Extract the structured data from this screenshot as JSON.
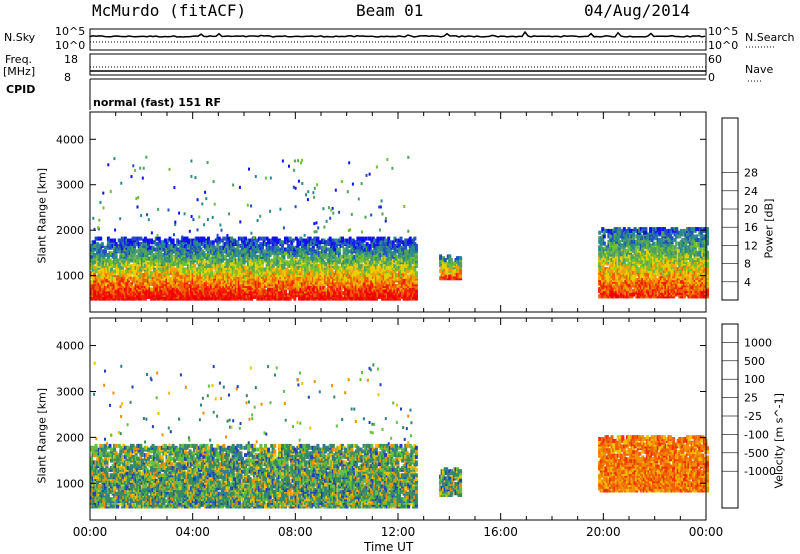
{
  "header": {
    "title": "McMurdo (fitACF)",
    "beam": "Beam 01",
    "date": "04/Aug/2014"
  },
  "strips": {
    "nsky_label": "N.Sky",
    "noise_ticks_left": [
      "10^5",
      "10^0"
    ],
    "noise_ticks_right": [
      "10^5",
      "10^0"
    ],
    "nsearch_label": "N.Search",
    "freq_label": "Freq.",
    "freq_unit": "[MHz]",
    "freq_ticks": [
      "18",
      "8"
    ],
    "nave_ticks": [
      "60",
      "0"
    ],
    "nave_label": "Nave",
    "cpid_label": "CPID",
    "cpid_value": "normal (fast) 151 RF"
  },
  "x_axis": {
    "label": "Time UT",
    "ticks": [
      "00:00",
      "04:00",
      "08:00",
      "12:00",
      "16:00",
      "20:00",
      "00:00"
    ]
  },
  "chart_data": [
    {
      "type": "heatmap",
      "panel": "power",
      "ylabel": "Slant Range [km]",
      "y_ticks": [
        "1000",
        "2000",
        "3000",
        "4000"
      ],
      "ylim": [
        200,
        4600
      ],
      "xlim_hours": [
        0,
        24
      ],
      "colorbar": {
        "label": "Power [dB]",
        "ticks": [
          "4",
          "8",
          "12",
          "16",
          "20",
          "24",
          "28"
        ],
        "colors": [
          "#1010f0",
          "#2050c0",
          "#2a8a8a",
          "#50a060",
          "#70c030",
          "#e8d000",
          "#f0a000",
          "#f06000",
          "#f02000",
          "#f00000"
        ]
      },
      "echo_regions": [
        {
          "t0": 0.0,
          "t1": 12.7,
          "r0": 450,
          "r1": 1800,
          "level": "strong"
        },
        {
          "t0": 13.6,
          "t1": 14.4,
          "r0": 900,
          "r1": 1400,
          "level": "medium"
        },
        {
          "t0": 19.8,
          "t1": 24.0,
          "r0": 500,
          "r1": 2000,
          "level": "medium"
        }
      ]
    },
    {
      "type": "heatmap",
      "panel": "velocity",
      "ylabel": "Slant Range [km]",
      "y_ticks": [
        "1000",
        "2000",
        "3000",
        "4000"
      ],
      "ylim": [
        200,
        4600
      ],
      "xlim_hours": [
        0,
        24
      ],
      "colorbar": {
        "label": "Velocity [m s^-1]",
        "ticks": [
          "1000",
          "500",
          "100",
          "25",
          "-25",
          "-100",
          "-500",
          "-1000"
        ],
        "colors": [
          "#2040c0",
          "#2a7a9a",
          "#3a8a60",
          "#60c040",
          "#c0c0c0",
          "#f0c000",
          "#f09000",
          "#f06000",
          "#f03000",
          "#f00000"
        ]
      },
      "echo_regions": [
        {
          "t0": 0.0,
          "t1": 12.7,
          "r0": 450,
          "r1": 1800,
          "dominant": "green"
        },
        {
          "t0": 13.6,
          "t1": 14.4,
          "r0": 700,
          "r1": 1300,
          "dominant": "green"
        },
        {
          "t0": 19.8,
          "t1": 24.0,
          "r0": 800,
          "r1": 2000,
          "dominant": "orange"
        }
      ]
    }
  ]
}
